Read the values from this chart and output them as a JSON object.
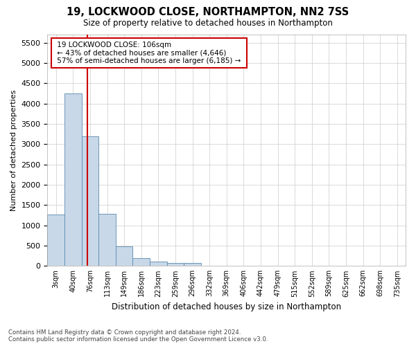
{
  "title": "19, LOCKWOOD CLOSE, NORTHAMPTON, NN2 7SS",
  "subtitle": "Size of property relative to detached houses in Northampton",
  "xlabel": "Distribution of detached houses by size in Northampton",
  "ylabel": "Number of detached properties",
  "footer_line1": "Contains HM Land Registry data © Crown copyright and database right 2024.",
  "footer_line2": "Contains public sector information licensed under the Open Government Licence v3.0.",
  "annotation_title": "19 LOCKWOOD CLOSE: 106sqm",
  "annotation_line2": "← 43% of detached houses are smaller (4,646)",
  "annotation_line3": "57% of semi-detached houses are larger (6,185) →",
  "bar_color": "#c8d8e8",
  "bar_edge_color": "#5a8ab0",
  "vline_color": "#cc0000",
  "annotation_box_color": "#cc0000",
  "categories": [
    "3sqm",
    "40sqm",
    "76sqm",
    "113sqm",
    "149sqm",
    "186sqm",
    "223sqm",
    "259sqm",
    "296sqm",
    "332sqm",
    "369sqm",
    "406sqm",
    "442sqm",
    "479sqm",
    "515sqm",
    "552sqm",
    "589sqm",
    "625sqm",
    "662sqm",
    "698sqm",
    "735sqm"
  ],
  "values": [
    1270,
    4250,
    3200,
    1280,
    480,
    200,
    100,
    80,
    65,
    0,
    0,
    0,
    0,
    0,
    0,
    0,
    0,
    0,
    0,
    0,
    0
  ],
  "ylim": [
    0,
    5700
  ],
  "yticks": [
    0,
    500,
    1000,
    1500,
    2000,
    2500,
    3000,
    3500,
    4000,
    4500,
    5000,
    5500
  ],
  "vline_x_index": 1.83,
  "background_color": "#ffffff",
  "grid_color": "#cccccc"
}
